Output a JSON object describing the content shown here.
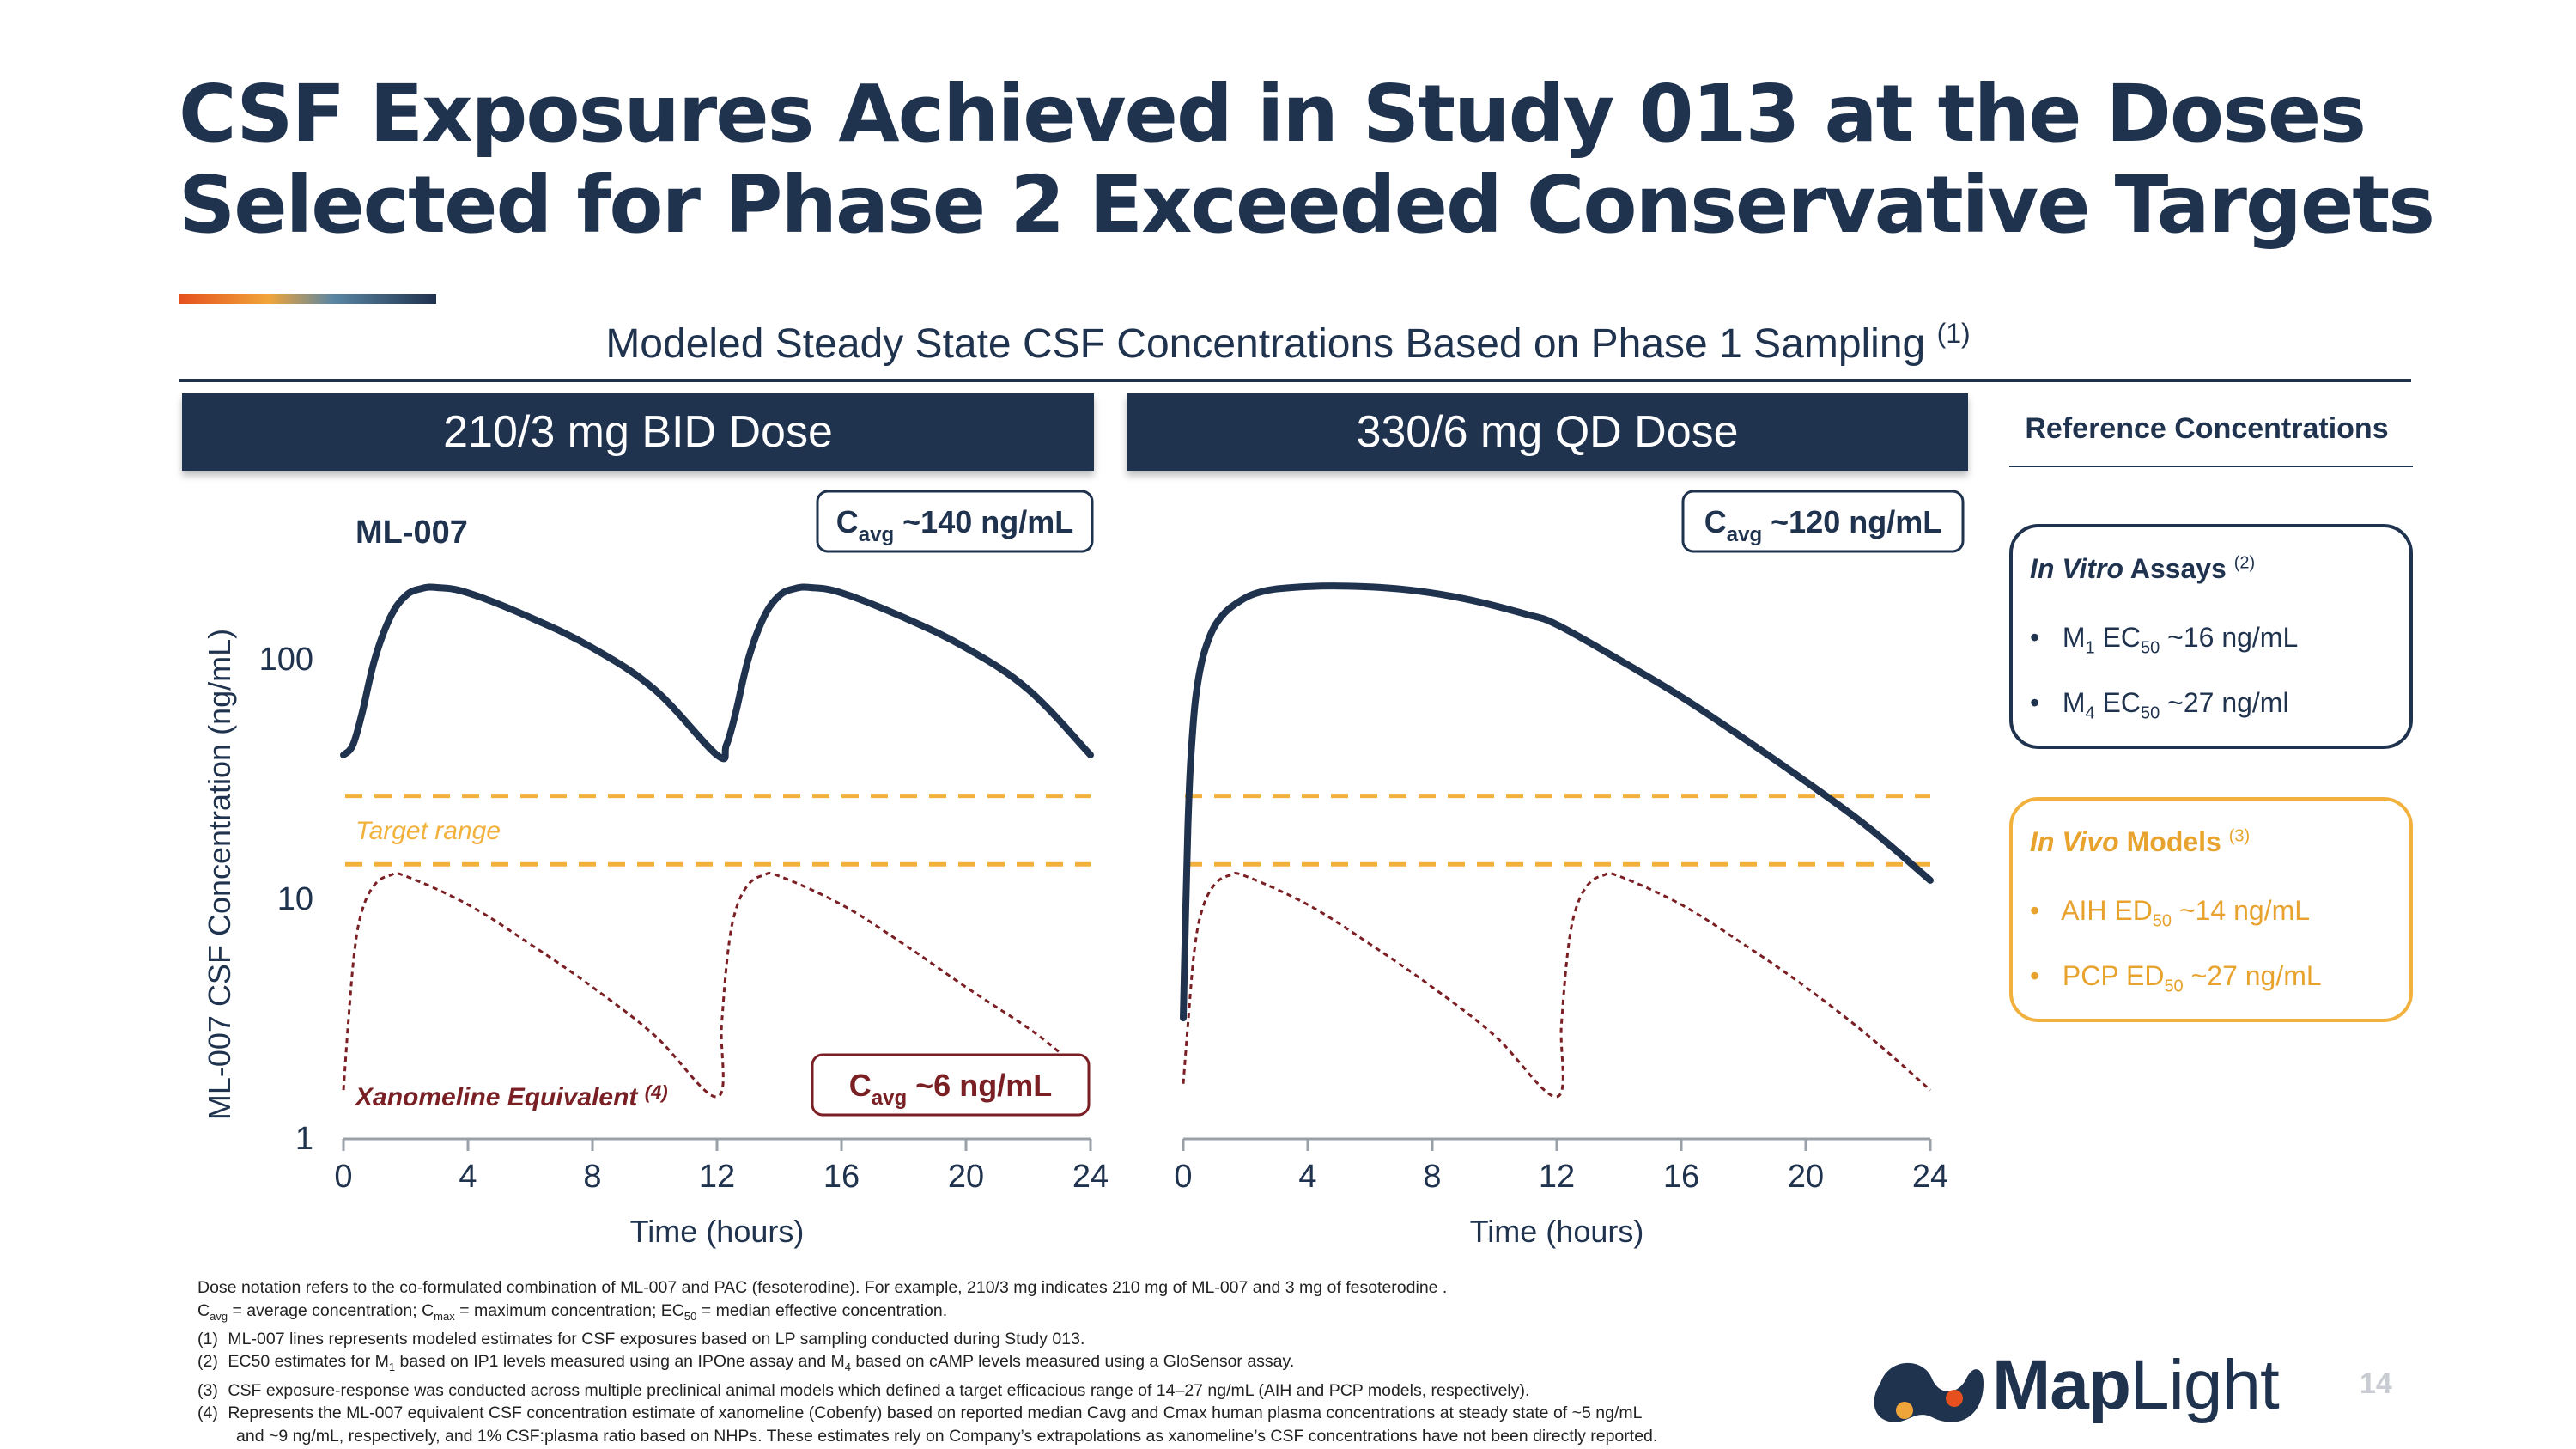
{
  "slide": {
    "title_line1": "CSF Exposures Achieved in Study 013 at the Doses",
    "title_line2": "Selected for Phase 2 Exceeded Conservative Targets",
    "subtitle": "Modeled Steady State CSF Concentrations Based on Phase 1 Sampling",
    "subtitle_ref": "(1)",
    "page_number": "14"
  },
  "panels": {
    "left_header": "210/3 mg BID Dose",
    "right_header": "330/6 mg QD Dose"
  },
  "reference": {
    "title": "Reference Concentrations",
    "in_vitro": {
      "heading_italic": "In Vitro",
      "heading_rest": " Assays",
      "ref": "(2)",
      "items": [
        {
          "prefix": "M",
          "sub1": "1",
          "mid": " EC",
          "sub2": "50",
          "value": " ~16 ng/mL"
        },
        {
          "prefix": "M",
          "sub1": "4",
          "mid": " EC",
          "sub2": "50",
          "value": "  ~27 ng/ml"
        }
      ]
    },
    "in_vivo": {
      "heading_italic": "In Vivo",
      "heading_rest": " Models",
      "ref": "(3)",
      "items": [
        {
          "prefix": "AIH ED",
          "sub": "50",
          "value": " ~14 ng/mL"
        },
        {
          "prefix": "PCP ED",
          "sub": "50",
          "value": " ~27 ng/mL"
        }
      ]
    }
  },
  "chart_data": [
    {
      "type": "line",
      "panel": "210/3 mg BID Dose",
      "yscale": "log",
      "ylabel": "ML-007 CSF Concentration (ng/mL)",
      "xlabel": "Time (hours)",
      "xlim": [
        0,
        24
      ],
      "ylim": [
        1,
        300
      ],
      "xticks": [
        "0",
        "4",
        "8",
        "12",
        "16",
        "20",
        "24"
      ],
      "yticks": [
        {
          "value": 1,
          "label": "1"
        },
        {
          "value": 10,
          "label": "10"
        },
        {
          "value": 100,
          "label": "100"
        }
      ],
      "target_range": {
        "low": 14,
        "high": 27,
        "label": "Target range"
      },
      "annotations": {
        "ml007_label": "ML-007",
        "xano_label": "Xanomeline Equivalent",
        "xano_ref": "(4)",
        "cavg_ml007": "~140 ng/mL",
        "cavg_xano": "~6 ng/mL",
        "cavg_prefix": "C",
        "cavg_sub": "avg"
      },
      "series": [
        {
          "name": "ML-007",
          "style": "solid",
          "color": "#1f324e",
          "x": [
            0,
            0.3,
            0.6,
            1,
            1.5,
            2,
            2.5,
            3,
            4,
            6,
            8,
            10,
            12,
            12.3,
            12.6,
            13,
            13.5,
            14,
            14.5,
            15,
            16,
            18,
            20,
            22,
            24
          ],
          "y": [
            40,
            44,
            60,
            100,
            150,
            185,
            198,
            200,
            190,
            150,
            112,
            75,
            40,
            44,
            60,
            100,
            150,
            185,
            198,
            200,
            190,
            150,
            112,
            75,
            40
          ]
        },
        {
          "name": "Xanomeline Equivalent",
          "style": "dotted",
          "color": "#7a1f24",
          "x": [
            0,
            0.15,
            0.35,
            0.6,
            1,
            1.5,
            2,
            4,
            6,
            8,
            10,
            12,
            12.15,
            12.35,
            12.6,
            13,
            13.5,
            14,
            16,
            18,
            20,
            22,
            23
          ],
          "y": [
            1.6,
            3,
            6,
            9,
            11.5,
            12.6,
            12.5,
            9.5,
            6.5,
            4.3,
            2.7,
            1.5,
            3,
            6,
            9,
            11.5,
            12.6,
            12.5,
            9.5,
            6.5,
            4.3,
            2.9,
            2.3
          ]
        }
      ]
    },
    {
      "type": "line",
      "panel": "330/6 mg QD Dose",
      "yscale": "log",
      "xlabel": "Time (hours)",
      "xlim": [
        0,
        24
      ],
      "ylim": [
        1,
        300
      ],
      "xticks": [
        "0",
        "4",
        "8",
        "12",
        "16",
        "20",
        "24"
      ],
      "target_range": {
        "low": 14,
        "high": 27
      },
      "annotations": {
        "cavg_ml007": "~120 ng/mL",
        "cavg_prefix": "C",
        "cavg_sub": "avg"
      },
      "series": [
        {
          "name": "ML-007",
          "style": "solid",
          "color": "#1f324e",
          "x": [
            0,
            0.15,
            0.3,
            0.5,
            0.8,
            1.2,
            1.8,
            2.5,
            3.5,
            5,
            7,
            9,
            11,
            12,
            14,
            16,
            18,
            20,
            22,
            24
          ],
          "y": [
            3.2,
            20,
            50,
            85,
            120,
            150,
            175,
            192,
            200,
            203,
            197,
            180,
            155,
            140,
            100,
            70,
            47,
            31,
            20,
            12
          ]
        },
        {
          "name": "Xanomeline Equivalent",
          "style": "dotted",
          "color": "#7a1f24",
          "x": [
            0,
            0.15,
            0.35,
            0.6,
            1,
            1.5,
            2,
            4,
            6,
            8,
            10,
            12,
            12.15,
            12.35,
            12.6,
            13,
            13.5,
            14,
            16,
            18,
            20,
            22,
            24
          ],
          "y": [
            1.7,
            3,
            6,
            9,
            11.5,
            12.6,
            12.5,
            9.5,
            6.5,
            4.3,
            2.7,
            1.5,
            3,
            6,
            9,
            11.5,
            12.6,
            12.5,
            9.5,
            6.5,
            4.3,
            2.7,
            1.6
          ]
        }
      ]
    }
  ],
  "footnotes": {
    "line0": "Dose notation refers to the co-formulated combination of ML-007 and PAC (fesoterodine). For example, 210/3 mg indicates 210 mg of ML-007 and 3 mg of fesoterodine .",
    "line1_a": "C",
    "line1_sub1": "avg",
    "line1_b": " = average concentration; C",
    "line1_sub2": "max",
    "line1_c": " = maximum concentration; EC",
    "line1_sub3": "50",
    "line1_d": " = median effective concentration.",
    "n1": "(1)",
    "t1": "ML-007 lines represents modeled estimates for CSF exposures based on LP sampling conducted during Study 013.",
    "n2": "(2)",
    "t2_a": "EC50 estimates for M",
    "t2_sub1": "1",
    "t2_b": " based on IP1 levels measured using an IPOne assay and M",
    "t2_sub2": "4",
    "t2_c": " based on cAMP levels measured using a GloSensor assay.",
    "n3": "(3)",
    "t3": "CSF exposure-response was conducted across multiple preclinical animal models which defined a target efficacious range of 14–27 ng/mL (AIH and PCP models, respectively).",
    "n4": "(4)",
    "t4a": "Represents the ML-007 equivalent CSF concentration estimate of xanomeline (Cobenfy) based on reported median Cavg and Cmax human plasma concentrations at steady state of ~5 ng/mL",
    "t4b": "and ~9 ng/mL, respectively, and 1% CSF:plasma ratio based on NHPs. These estimates rely on Company’s extrapolations as xanomeline’s CSF concentrations have not been directly reported."
  },
  "logo": {
    "text_bold": "Map",
    "text_light": "Light",
    "colors": {
      "navy": "#1f324e",
      "orange": "#f0a53a",
      "red": "#e5501e"
    }
  },
  "colors": {
    "navy": "#1f324e",
    "target": "#f2b13c",
    "xano": "#7a1f24"
  }
}
